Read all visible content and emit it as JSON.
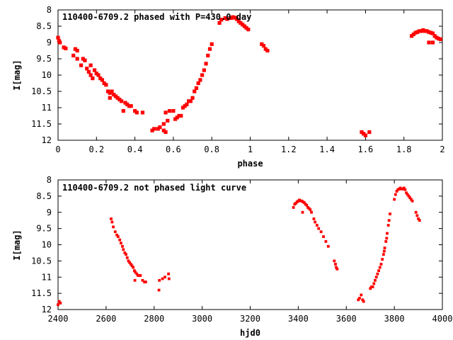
{
  "chart_data": [
    {
      "type": "scatter",
      "title": "110400-6709.2 phased with P=430.0 day",
      "xlabel": "phase",
      "ylabel": "I[mag]",
      "xlim": [
        0,
        2
      ],
      "ylim": [
        12,
        8
      ],
      "y_inverted": true,
      "grid": false,
      "legend": "none",
      "marker_color": "#ff0000",
      "x_ticks": [
        "0",
        "0.2",
        "0.4",
        "0.6",
        "0.8",
        "1",
        "1.2",
        "1.4",
        "1.6",
        "1.8",
        "2"
      ],
      "y_ticks": [
        "8",
        "8.5",
        "9",
        "9.5",
        "10",
        "10.5",
        "11",
        "11.5",
        "12"
      ],
      "points": [
        [
          0.0,
          8.85
        ],
        [
          0.005,
          8.95
        ],
        [
          0.01,
          9.0
        ],
        [
          0.03,
          9.15
        ],
        [
          0.04,
          9.18
        ],
        [
          0.08,
          9.4
        ],
        [
          0.09,
          9.2
        ],
        [
          0.1,
          9.25
        ],
        [
          0.1,
          9.5
        ],
        [
          0.12,
          9.7
        ],
        [
          0.13,
          9.5
        ],
        [
          0.14,
          9.55
        ],
        [
          0.15,
          9.8
        ],
        [
          0.16,
          9.9
        ],
        [
          0.17,
          9.7
        ],
        [
          0.17,
          10.0
        ],
        [
          0.18,
          10.1
        ],
        [
          0.19,
          9.85
        ],
        [
          0.2,
          9.95
        ],
        [
          0.21,
          10.0
        ],
        [
          0.22,
          10.1
        ],
        [
          0.23,
          10.15
        ],
        [
          0.24,
          10.25
        ],
        [
          0.25,
          10.3
        ],
        [
          0.26,
          10.5
        ],
        [
          0.27,
          10.55
        ],
        [
          0.27,
          10.7
        ],
        [
          0.28,
          10.5
        ],
        [
          0.29,
          10.6
        ],
        [
          0.3,
          10.65
        ],
        [
          0.31,
          10.7
        ],
        [
          0.32,
          10.75
        ],
        [
          0.33,
          10.8
        ],
        [
          0.34,
          11.1
        ],
        [
          0.35,
          10.85
        ],
        [
          0.36,
          10.9
        ],
        [
          0.37,
          10.95
        ],
        [
          0.38,
          10.95
        ],
        [
          0.4,
          11.1
        ],
        [
          0.41,
          11.15
        ],
        [
          0.44,
          11.15
        ],
        [
          0.49,
          11.7
        ],
        [
          0.5,
          11.65
        ],
        [
          0.52,
          11.65
        ],
        [
          0.53,
          11.6
        ],
        [
          0.55,
          11.5
        ],
        [
          0.55,
          11.7
        ],
        [
          0.56,
          11.15
        ],
        [
          0.56,
          11.75
        ],
        [
          0.57,
          11.4
        ],
        [
          0.58,
          11.1
        ],
        [
          0.6,
          11.1
        ],
        [
          0.61,
          11.35
        ],
        [
          0.62,
          11.3
        ],
        [
          0.63,
          11.25
        ],
        [
          0.64,
          11.25
        ],
        [
          0.65,
          11.0
        ],
        [
          0.66,
          10.95
        ],
        [
          0.67,
          10.9
        ],
        [
          0.68,
          10.8
        ],
        [
          0.69,
          10.8
        ],
        [
          0.7,
          10.7
        ],
        [
          0.71,
          10.5
        ],
        [
          0.72,
          10.4
        ],
        [
          0.73,
          10.25
        ],
        [
          0.74,
          10.15
        ],
        [
          0.75,
          10.0
        ],
        [
          0.76,
          9.85
        ],
        [
          0.77,
          9.65
        ],
        [
          0.78,
          9.4
        ],
        [
          0.79,
          9.2
        ],
        [
          0.8,
          9.05
        ],
        [
          0.84,
          8.4
        ],
        [
          0.85,
          8.3
        ],
        [
          0.87,
          8.25
        ],
        [
          0.88,
          8.28
        ],
        [
          0.9,
          8.25
        ],
        [
          0.91,
          8.22
        ],
        [
          0.92,
          8.24
        ],
        [
          0.93,
          8.28
        ],
        [
          0.94,
          8.35
        ],
        [
          0.95,
          8.4
        ],
        [
          0.96,
          8.45
        ],
        [
          0.97,
          8.5
        ],
        [
          0.98,
          8.55
        ],
        [
          0.99,
          8.6
        ],
        [
          1.06,
          9.05
        ],
        [
          1.07,
          9.1
        ],
        [
          1.08,
          9.2
        ],
        [
          1.09,
          9.25
        ],
        [
          1.58,
          11.75
        ],
        [
          1.59,
          11.8
        ],
        [
          1.6,
          11.85
        ],
        [
          1.62,
          11.75
        ],
        [
          1.84,
          8.8
        ],
        [
          1.85,
          8.75
        ],
        [
          1.86,
          8.7
        ],
        [
          1.87,
          8.68
        ],
        [
          1.88,
          8.65
        ],
        [
          1.89,
          8.65
        ],
        [
          1.9,
          8.62
        ],
        [
          1.91,
          8.65
        ],
        [
          1.92,
          8.65
        ],
        [
          1.93,
          8.68
        ],
        [
          1.94,
          8.7
        ],
        [
          1.95,
          8.72
        ],
        [
          1.96,
          8.8
        ],
        [
          1.97,
          8.85
        ],
        [
          1.98,
          8.88
        ],
        [
          1.99,
          8.9
        ],
        [
          1.95,
          9.0
        ],
        [
          1.93,
          9.0
        ]
      ]
    },
    {
      "type": "scatter",
      "title": "110400-6709.2 not phased light curve",
      "xlabel": "hjd0",
      "ylabel": "I[mag]",
      "xlim": [
        2400,
        4000
      ],
      "ylim": [
        12,
        8
      ],
      "y_inverted": true,
      "grid": false,
      "legend": "none",
      "marker_color": "#ff0000",
      "x_ticks": [
        "2400",
        "2600",
        "2800",
        "3000",
        "3200",
        "3400",
        "3600",
        "3800",
        "4000"
      ],
      "y_ticks": [
        "8",
        "8.5",
        "9",
        "9.5",
        "10",
        "10.5",
        "11",
        "11.5",
        "12"
      ],
      "points": [
        [
          2400,
          11.85
        ],
        [
          2405,
          11.75
        ],
        [
          2410,
          11.8
        ],
        [
          2621,
          9.2
        ],
        [
          2625,
          9.3
        ],
        [
          2630,
          9.45
        ],
        [
          2638,
          9.6
        ],
        [
          2645,
          9.7
        ],
        [
          2650,
          9.75
        ],
        [
          2657,
          9.85
        ],
        [
          2662,
          9.95
        ],
        [
          2668,
          10.05
        ],
        [
          2672,
          10.15
        ],
        [
          2678,
          10.25
        ],
        [
          2683,
          10.3
        ],
        [
          2688,
          10.4
        ],
        [
          2693,
          10.5
        ],
        [
          2698,
          10.55
        ],
        [
          2703,
          10.6
        ],
        [
          2708,
          10.65
        ],
        [
          2713,
          10.7
        ],
        [
          2718,
          10.8
        ],
        [
          2722,
          10.85
        ],
        [
          2720,
          11.1
        ],
        [
          2728,
          10.9
        ],
        [
          2733,
          10.95
        ],
        [
          2738,
          10.95
        ],
        [
          2743,
          10.95
        ],
        [
          2752,
          11.1
        ],
        [
          2760,
          11.15
        ],
        [
          2765,
          11.15
        ],
        [
          2820,
          11.4
        ],
        [
          2822,
          11.1
        ],
        [
          2835,
          11.05
        ],
        [
          2845,
          11.0
        ],
        [
          2860,
          10.9
        ],
        [
          2862,
          11.05
        ],
        [
          3380,
          8.85
        ],
        [
          3385,
          8.75
        ],
        [
          3390,
          8.72
        ],
        [
          3395,
          8.68
        ],
        [
          3400,
          8.65
        ],
        [
          3405,
          8.62
        ],
        [
          3410,
          8.65
        ],
        [
          3415,
          8.65
        ],
        [
          3418,
          9.0
        ],
        [
          3420,
          8.68
        ],
        [
          3425,
          8.7
        ],
        [
          3430,
          8.75
        ],
        [
          3435,
          8.78
        ],
        [
          3440,
          8.85
        ],
        [
          3445,
          8.88
        ],
        [
          3450,
          8.92
        ],
        [
          3455,
          9.0
        ],
        [
          3465,
          9.2
        ],
        [
          3470,
          9.3
        ],
        [
          3478,
          9.4
        ],
        [
          3485,
          9.5
        ],
        [
          3495,
          9.6
        ],
        [
          3505,
          9.75
        ],
        [
          3515,
          9.9
        ],
        [
          3525,
          10.05
        ],
        [
          3550,
          10.5
        ],
        [
          3555,
          10.6
        ],
        [
          3558,
          10.7
        ],
        [
          3562,
          10.75
        ],
        [
          3650,
          11.7
        ],
        [
          3655,
          11.65
        ],
        [
          3662,
          11.55
        ],
        [
          3668,
          11.7
        ],
        [
          3672,
          11.75
        ],
        [
          3700,
          11.35
        ],
        [
          3705,
          11.3
        ],
        [
          3710,
          11.3
        ],
        [
          3715,
          11.2
        ],
        [
          3720,
          11.1
        ],
        [
          3725,
          11.0
        ],
        [
          3730,
          10.9
        ],
        [
          3735,
          10.8
        ],
        [
          3740,
          10.7
        ],
        [
          3745,
          10.6
        ],
        [
          3750,
          10.45
        ],
        [
          3755,
          10.3
        ],
        [
          3758,
          10.2
        ],
        [
          3760,
          10.1
        ],
        [
          3765,
          9.9
        ],
        [
          3768,
          9.8
        ],
        [
          3770,
          9.65
        ],
        [
          3775,
          9.4
        ],
        [
          3778,
          9.25
        ],
        [
          3782,
          9.05
        ],
        [
          3800,
          8.6
        ],
        [
          3805,
          8.45
        ],
        [
          3810,
          8.35
        ],
        [
          3815,
          8.3
        ],
        [
          3820,
          8.28
        ],
        [
          3825,
          8.25
        ],
        [
          3830,
          8.28
        ],
        [
          3835,
          8.28
        ],
        [
          3840,
          8.25
        ],
        [
          3845,
          8.3
        ],
        [
          3850,
          8.4
        ],
        [
          3855,
          8.45
        ],
        [
          3860,
          8.5
        ],
        [
          3865,
          8.55
        ],
        [
          3870,
          8.6
        ],
        [
          3875,
          8.65
        ],
        [
          3890,
          9.0
        ],
        [
          3895,
          9.1
        ],
        [
          3900,
          9.2
        ],
        [
          3905,
          9.25
        ]
      ]
    }
  ]
}
